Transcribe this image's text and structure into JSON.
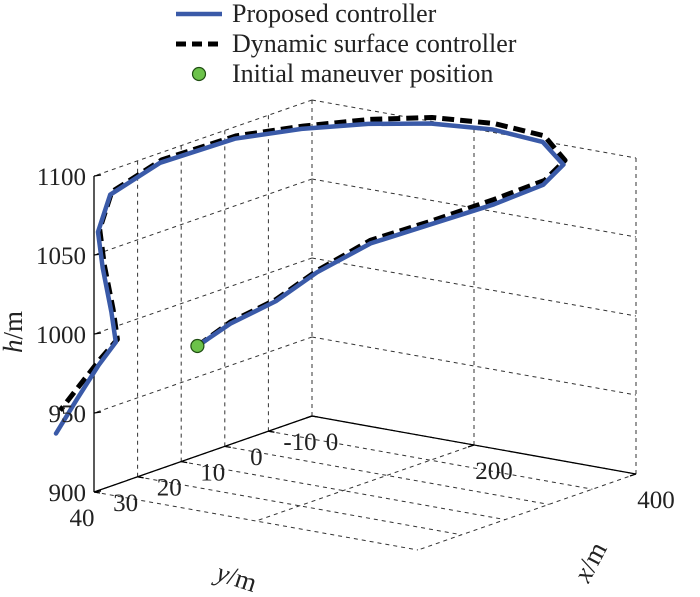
{
  "chart_data": {
    "type": "line",
    "projection": "3d",
    "xlabel": "x/m",
    "ylabel": "y/m",
    "zlabel": "h/m",
    "xlim": [
      0,
      400
    ],
    "ylim": [
      -10,
      40
    ],
    "zlim": [
      900,
      1100
    ],
    "xticks": [
      "0",
      "200",
      "400"
    ],
    "yticks": [
      "40",
      "30",
      "20",
      "10",
      "0",
      "-10"
    ],
    "zticks": [
      "900",
      "950",
      "1000",
      "1050",
      "1100"
    ],
    "grid": true,
    "legend_position": "top-center",
    "legend": [
      {
        "label": "Proposed controller",
        "kind": "line-solid",
        "color": "#3a5aa8"
      },
      {
        "label": "Dynamic surface controller",
        "kind": "line-dashed",
        "color": "#000000"
      },
      {
        "label": "Initial maneuver position",
        "kind": "marker-circle",
        "color": "#6cc24a"
      }
    ],
    "series": [
      {
        "name": "Proposed controller",
        "color": "#3a5aa8",
        "style": "solid",
        "points": [
          [
            20,
            20,
            975
          ],
          [
            50,
            18,
            990
          ],
          [
            90,
            15,
            1005
          ],
          [
            130,
            13,
            1025
          ],
          [
            180,
            10,
            1045
          ],
          [
            240,
            7,
            1060
          ],
          [
            300,
            4,
            1075
          ],
          [
            350,
            2,
            1090
          ],
          [
            375,
            2,
            1105
          ],
          [
            360,
            4,
            1120
          ],
          [
            320,
            8,
            1128
          ],
          [
            270,
            13,
            1132
          ],
          [
            220,
            18,
            1132
          ],
          [
            170,
            24,
            1130
          ],
          [
            120,
            30,
            1125
          ],
          [
            60,
            36,
            1110
          ],
          [
            20,
            40,
            1090
          ],
          [
            5,
            40,
            1065
          ],
          [
            0,
            38,
            1040
          ],
          [
            0,
            36,
            1010
          ],
          [
            0,
            35,
            990
          ],
          [
            -5,
            38,
            978
          ],
          [
            -10,
            42,
            960
          ],
          [
            -20,
            45,
            940
          ]
        ]
      },
      {
        "name": "Dynamic surface controller",
        "color": "#000000",
        "style": "dashed",
        "points": [
          [
            20,
            20,
            975
          ],
          [
            50,
            18,
            991
          ],
          [
            90,
            15,
            1006
          ],
          [
            130,
            13,
            1026
          ],
          [
            180,
            10,
            1047
          ],
          [
            240,
            7,
            1062
          ],
          [
            300,
            4,
            1078
          ],
          [
            352,
            2,
            1093
          ],
          [
            377,
            2,
            1108
          ],
          [
            362,
            4,
            1124
          ],
          [
            322,
            8,
            1132
          ],
          [
            272,
            13,
            1136
          ],
          [
            222,
            18,
            1135
          ],
          [
            172,
            24,
            1132
          ],
          [
            122,
            30,
            1127
          ],
          [
            62,
            36,
            1112
          ],
          [
            22,
            40,
            1092
          ],
          [
            7,
            40,
            1067
          ],
          [
            2,
            38,
            1042
          ],
          [
            2,
            36,
            1012
          ],
          [
            2,
            35,
            992
          ],
          [
            -3,
            38,
            982
          ],
          [
            -8,
            42,
            968
          ],
          [
            -15,
            45,
            955
          ]
        ]
      }
    ],
    "initial_point": {
      "label": "Initial maneuver position",
      "point": [
        20,
        20,
        975
      ],
      "color": "#6cc24a"
    }
  }
}
